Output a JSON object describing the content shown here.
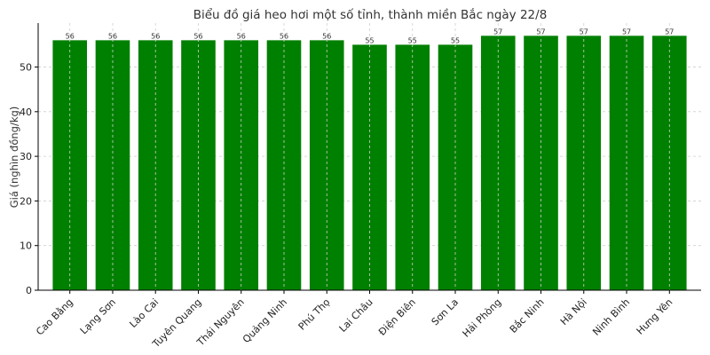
{
  "chart_data": {
    "type": "bar",
    "title": "Biểu đồ giá heo hơi một số tỉnh, thành miền Bắc ngày 22/8",
    "xlabel": "",
    "ylabel": "Giá (nghìn đồng/kg)",
    "ylim": [
      0,
      59.85
    ],
    "yticks": [
      0,
      10,
      20,
      30,
      40,
      50
    ],
    "grid": true,
    "bar_color": "#008000",
    "categories": [
      "Cao Bằng",
      "Lạng Sơn",
      "Lào Cai",
      "Tuyên Quang",
      "Thái Nguyên",
      "Quảng Ninh",
      "Phú Thọ",
      "Lai Châu",
      "Điện Biên",
      "Sơn La",
      "Hải Phòng",
      "Bắc Ninh",
      "Hà Nội",
      "Ninh Bình",
      "Hưng Yên"
    ],
    "values": [
      56,
      56,
      56,
      56,
      56,
      56,
      56,
      55,
      55,
      55,
      57,
      57,
      57,
      57,
      57
    ]
  }
}
